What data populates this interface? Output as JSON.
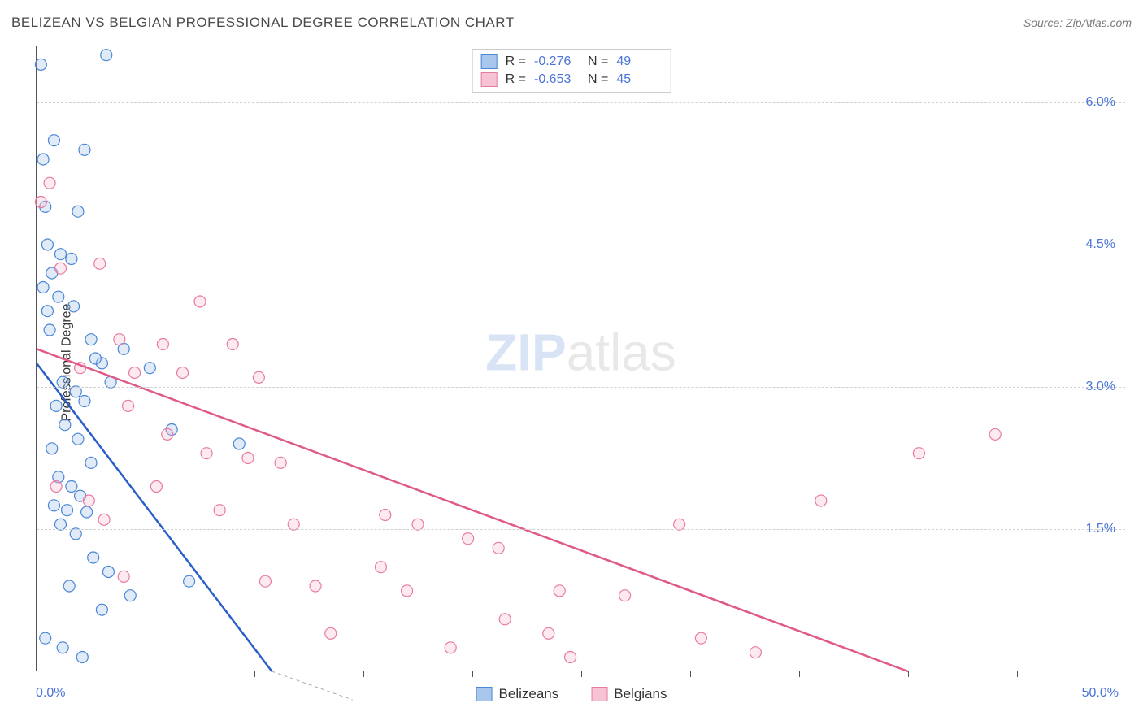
{
  "title": "BELIZEAN VS BELGIAN PROFESSIONAL DEGREE CORRELATION CHART",
  "source": "Source: ZipAtlas.com",
  "ylabel": "Professional Degree",
  "watermark_bold": "ZIP",
  "watermark_light": "atlas",
  "chart": {
    "type": "scatter",
    "xlim": [
      0,
      50
    ],
    "ylim": [
      0,
      6.6
    ],
    "xtick_positions": [
      5,
      10,
      15,
      20,
      25,
      30,
      35,
      40,
      45
    ],
    "xaxis_min_label": "0.0%",
    "xaxis_max_label": "50.0%",
    "yticks": [
      {
        "v": 1.5,
        "label": "1.5%"
      },
      {
        "v": 3.0,
        "label": "3.0%"
      },
      {
        "v": 4.5,
        "label": "4.5%"
      },
      {
        "v": 6.0,
        "label": "6.0%"
      }
    ],
    "background_color": "#ffffff",
    "grid_color": "#d0d0d0",
    "axis_color": "#555555",
    "marker_radius": 7,
    "marker_stroke_width": 1.2,
    "marker_fill_opacity": 0.35,
    "series": [
      {
        "name": "Belizeans",
        "color_stroke": "#4a87d6",
        "color_fill": "#a9c7ec",
        "line_color": "#2a5fc7",
        "R": "-0.276",
        "N": "49",
        "trend": {
          "x1": 0,
          "y1": 3.25,
          "x2": 10.8,
          "y2": 0
        },
        "trend_dash": {
          "x1": 10.8,
          "y1": 0,
          "x2": 14.5,
          "y2": -1.0
        },
        "points": [
          [
            0.2,
            6.4
          ],
          [
            3.2,
            6.5
          ],
          [
            0.8,
            5.6
          ],
          [
            0.3,
            5.4
          ],
          [
            2.2,
            5.5
          ],
          [
            0.4,
            4.9
          ],
          [
            1.9,
            4.85
          ],
          [
            0.5,
            4.5
          ],
          [
            1.1,
            4.4
          ],
          [
            1.6,
            4.35
          ],
          [
            0.7,
            4.2
          ],
          [
            0.3,
            4.05
          ],
          [
            1.0,
            3.95
          ],
          [
            0.5,
            3.8
          ],
          [
            1.7,
            3.85
          ],
          [
            0.6,
            3.6
          ],
          [
            2.5,
            3.5
          ],
          [
            3.0,
            3.25
          ],
          [
            1.2,
            3.05
          ],
          [
            1.8,
            2.95
          ],
          [
            0.9,
            2.8
          ],
          [
            2.2,
            2.85
          ],
          [
            1.3,
            2.6
          ],
          [
            1.9,
            2.45
          ],
          [
            0.7,
            2.35
          ],
          [
            2.5,
            2.2
          ],
          [
            1.0,
            2.05
          ],
          [
            1.6,
            1.95
          ],
          [
            2.0,
            1.85
          ],
          [
            0.8,
            1.75
          ],
          [
            1.4,
            1.7
          ],
          [
            2.3,
            1.68
          ],
          [
            1.1,
            1.55
          ],
          [
            1.8,
            1.45
          ],
          [
            2.6,
            1.2
          ],
          [
            3.3,
            1.05
          ],
          [
            1.5,
            0.9
          ],
          [
            4.3,
            0.8
          ],
          [
            3.0,
            0.65
          ],
          [
            0.4,
            0.35
          ],
          [
            1.2,
            0.25
          ],
          [
            2.1,
            0.15
          ],
          [
            6.2,
            2.55
          ],
          [
            9.3,
            2.4
          ],
          [
            7.0,
            0.95
          ],
          [
            4.0,
            3.4
          ],
          [
            5.2,
            3.2
          ],
          [
            3.4,
            3.05
          ],
          [
            2.7,
            3.3
          ]
        ]
      },
      {
        "name": "Belgians",
        "color_stroke": "#e77ba0",
        "color_fill": "#f5c3d3",
        "line_color": "#e05a88",
        "R": "-0.653",
        "N": "45",
        "trend": {
          "x1": 0,
          "y1": 3.4,
          "x2": 40,
          "y2": 0
        },
        "points": [
          [
            0.6,
            5.15
          ],
          [
            0.2,
            4.95
          ],
          [
            1.1,
            4.25
          ],
          [
            2.9,
            4.3
          ],
          [
            7.5,
            3.9
          ],
          [
            3.8,
            3.5
          ],
          [
            5.8,
            3.45
          ],
          [
            9.0,
            3.45
          ],
          [
            2.0,
            3.2
          ],
          [
            4.5,
            3.15
          ],
          [
            6.7,
            3.15
          ],
          [
            10.2,
            3.1
          ],
          [
            4.2,
            2.8
          ],
          [
            6.0,
            2.5
          ],
          [
            0.9,
            1.95
          ],
          [
            2.4,
            1.8
          ],
          [
            7.8,
            2.3
          ],
          [
            9.7,
            2.25
          ],
          [
            11.2,
            2.2
          ],
          [
            8.4,
            1.7
          ],
          [
            17.5,
            1.55
          ],
          [
            19.8,
            1.4
          ],
          [
            21.2,
            1.3
          ],
          [
            16.0,
            1.65
          ],
          [
            29.5,
            1.55
          ],
          [
            36.0,
            1.8
          ],
          [
            10.5,
            0.95
          ],
          [
            12.8,
            0.9
          ],
          [
            17.0,
            0.85
          ],
          [
            24.0,
            0.85
          ],
          [
            21.5,
            0.55
          ],
          [
            23.5,
            0.4
          ],
          [
            24.5,
            0.15
          ],
          [
            27.0,
            0.8
          ],
          [
            33.0,
            0.2
          ],
          [
            40.5,
            2.3
          ],
          [
            44.0,
            2.5
          ],
          [
            5.5,
            1.95
          ],
          [
            3.1,
            1.6
          ],
          [
            4.0,
            1.0
          ],
          [
            13.5,
            0.4
          ],
          [
            15.8,
            1.1
          ],
          [
            30.5,
            0.35
          ],
          [
            19.0,
            0.25
          ],
          [
            11.8,
            1.55
          ]
        ]
      }
    ]
  },
  "stats_legend_labels": {
    "R": "R =",
    "N": "N ="
  },
  "bottom_legend": [
    {
      "label": "Belizeans",
      "stroke": "#4a87d6",
      "fill": "#a9c7ec"
    },
    {
      "label": "Belgians",
      "stroke": "#e77ba0",
      "fill": "#f5c3d3"
    }
  ]
}
